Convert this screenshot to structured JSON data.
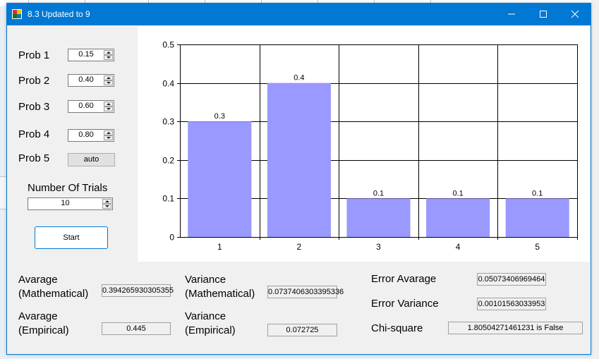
{
  "window": {
    "title": "8.3 Updated to 9"
  },
  "titlebar_icons": [
    "app-icon",
    "minimize-icon",
    "maximize-icon",
    "close-icon"
  ],
  "inputs": {
    "prob1": {
      "label": "Prob 1",
      "value": "0.15"
    },
    "prob2": {
      "label": "Prob 2",
      "value": "0.40"
    },
    "prob3": {
      "label": "Prob 3",
      "value": "0.60"
    },
    "prob4": {
      "label": "Prob 4",
      "value": "0.80"
    },
    "prob5": {
      "label": "Prob 5",
      "button": "auto"
    },
    "trials": {
      "label": "Number Of Trials",
      "value": "10"
    },
    "start": "Start"
  },
  "stats": {
    "avg_math": {
      "line1": "Avarage",
      "line2": "(Mathematical)",
      "value": "0.394265930305355"
    },
    "avg_emp": {
      "line1": "Avarage",
      "line2": "(Empirical)",
      "value": "0.445"
    },
    "var_math": {
      "line1": "Variance",
      "line2": "(Mathematical)",
      "value": "0.0737406303395336"
    },
    "var_emp": {
      "line1": "Variance",
      "line2": "(Empirical)",
      "value": "0.072725"
    },
    "err_avg": {
      "label": "Error Avarage",
      "value": "0.05073406969464"
    },
    "err_var": {
      "label": "Error Variance",
      "value": "0.00101563033953"
    },
    "chi": {
      "label": "Chi-square",
      "value": "1.80504271461231 is False"
    }
  },
  "chart_data": {
    "type": "bar",
    "categories": [
      "1",
      "2",
      "3",
      "4",
      "5"
    ],
    "values": [
      0.3,
      0.4,
      0.1,
      0.1,
      0.1
    ],
    "data_labels": [
      "0.3",
      "0.4",
      "0.1",
      "0.1",
      "0.1"
    ],
    "ylim": [
      0,
      0.5
    ],
    "yticks": [
      "0",
      "0.1",
      "0.2",
      "0.3",
      "0.4",
      "0.5"
    ],
    "grid": true,
    "bar_color": "#9999ff"
  },
  "colors": {
    "titlebar": "#0078d4",
    "window_bg": "#f0f0f0",
    "bar": "#9999ff"
  }
}
